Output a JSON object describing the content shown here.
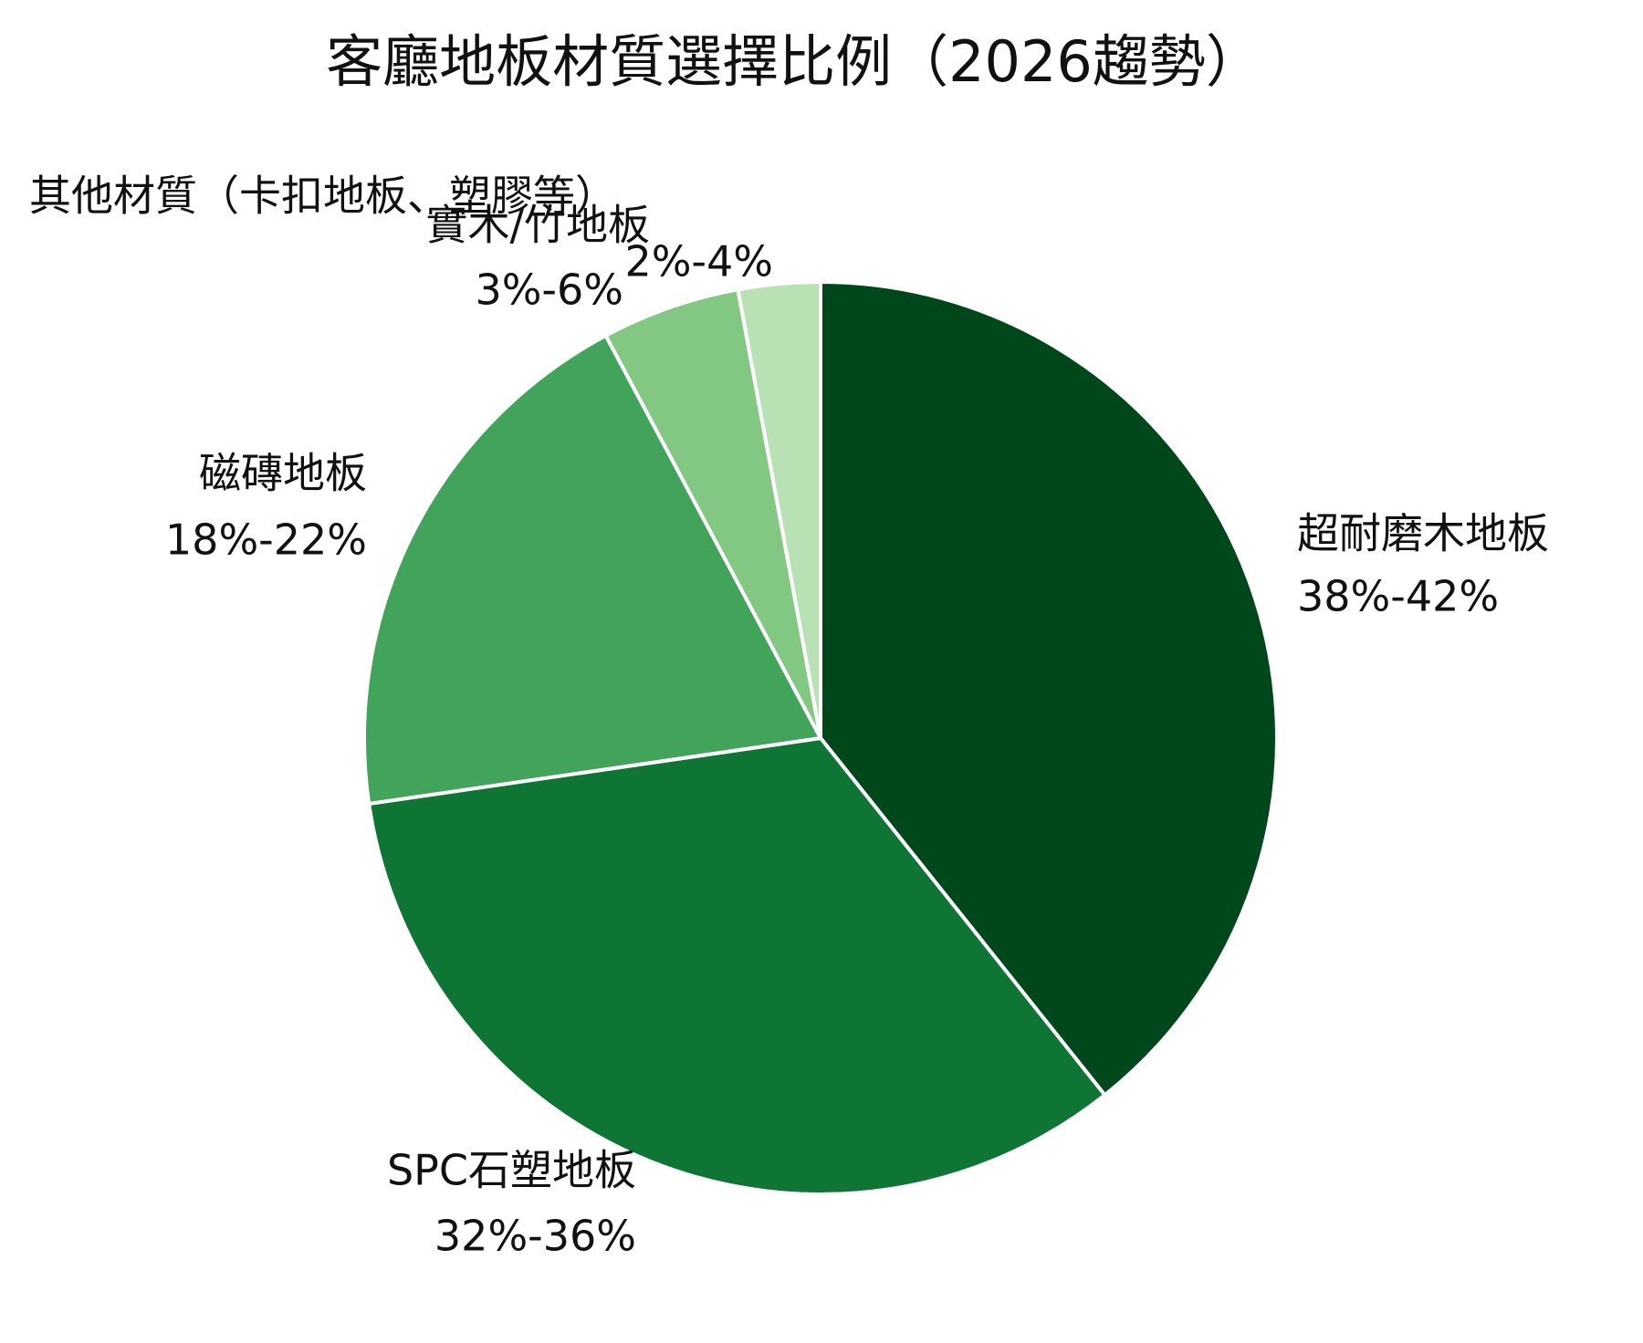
{
  "chart_data": {
    "type": "pie",
    "title": "客廳地板材質選擇比例（2026趨勢）",
    "categories": [
      "超耐磨木地板",
      "SPC石塑地板",
      "磁磚地板",
      "實木/竹地板",
      "其他材質（卡扣地板、塑膠等）"
    ],
    "values": [
      39.3,
      33.4,
      19.5,
      4.9,
      2.9
    ],
    "value_labels": [
      "38%-42%",
      "32%-36%",
      "18%-22%",
      "3%-6%",
      "2%-4%"
    ],
    "colors": [
      "#00471b",
      "#0e7535",
      "#41a45a",
      "#82c882",
      "#b8e2b3"
    ]
  }
}
